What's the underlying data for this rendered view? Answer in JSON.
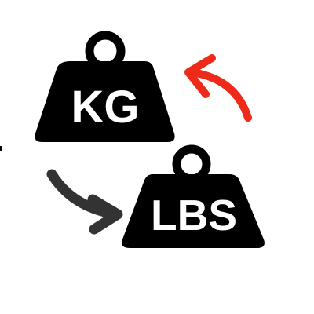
{
  "weights": {
    "kg": {
      "label": "KG"
    },
    "lbs": {
      "label": "LBS"
    }
  },
  "arrows": {
    "to_lbs": {
      "icon": "curved-arrow-right-icon",
      "color": "#333333"
    },
    "to_kg": {
      "icon": "curved-arrow-left-icon",
      "color": "#ee2a1b"
    }
  },
  "colors": {
    "weight_body": "#000000",
    "background": "#ffffff"
  }
}
